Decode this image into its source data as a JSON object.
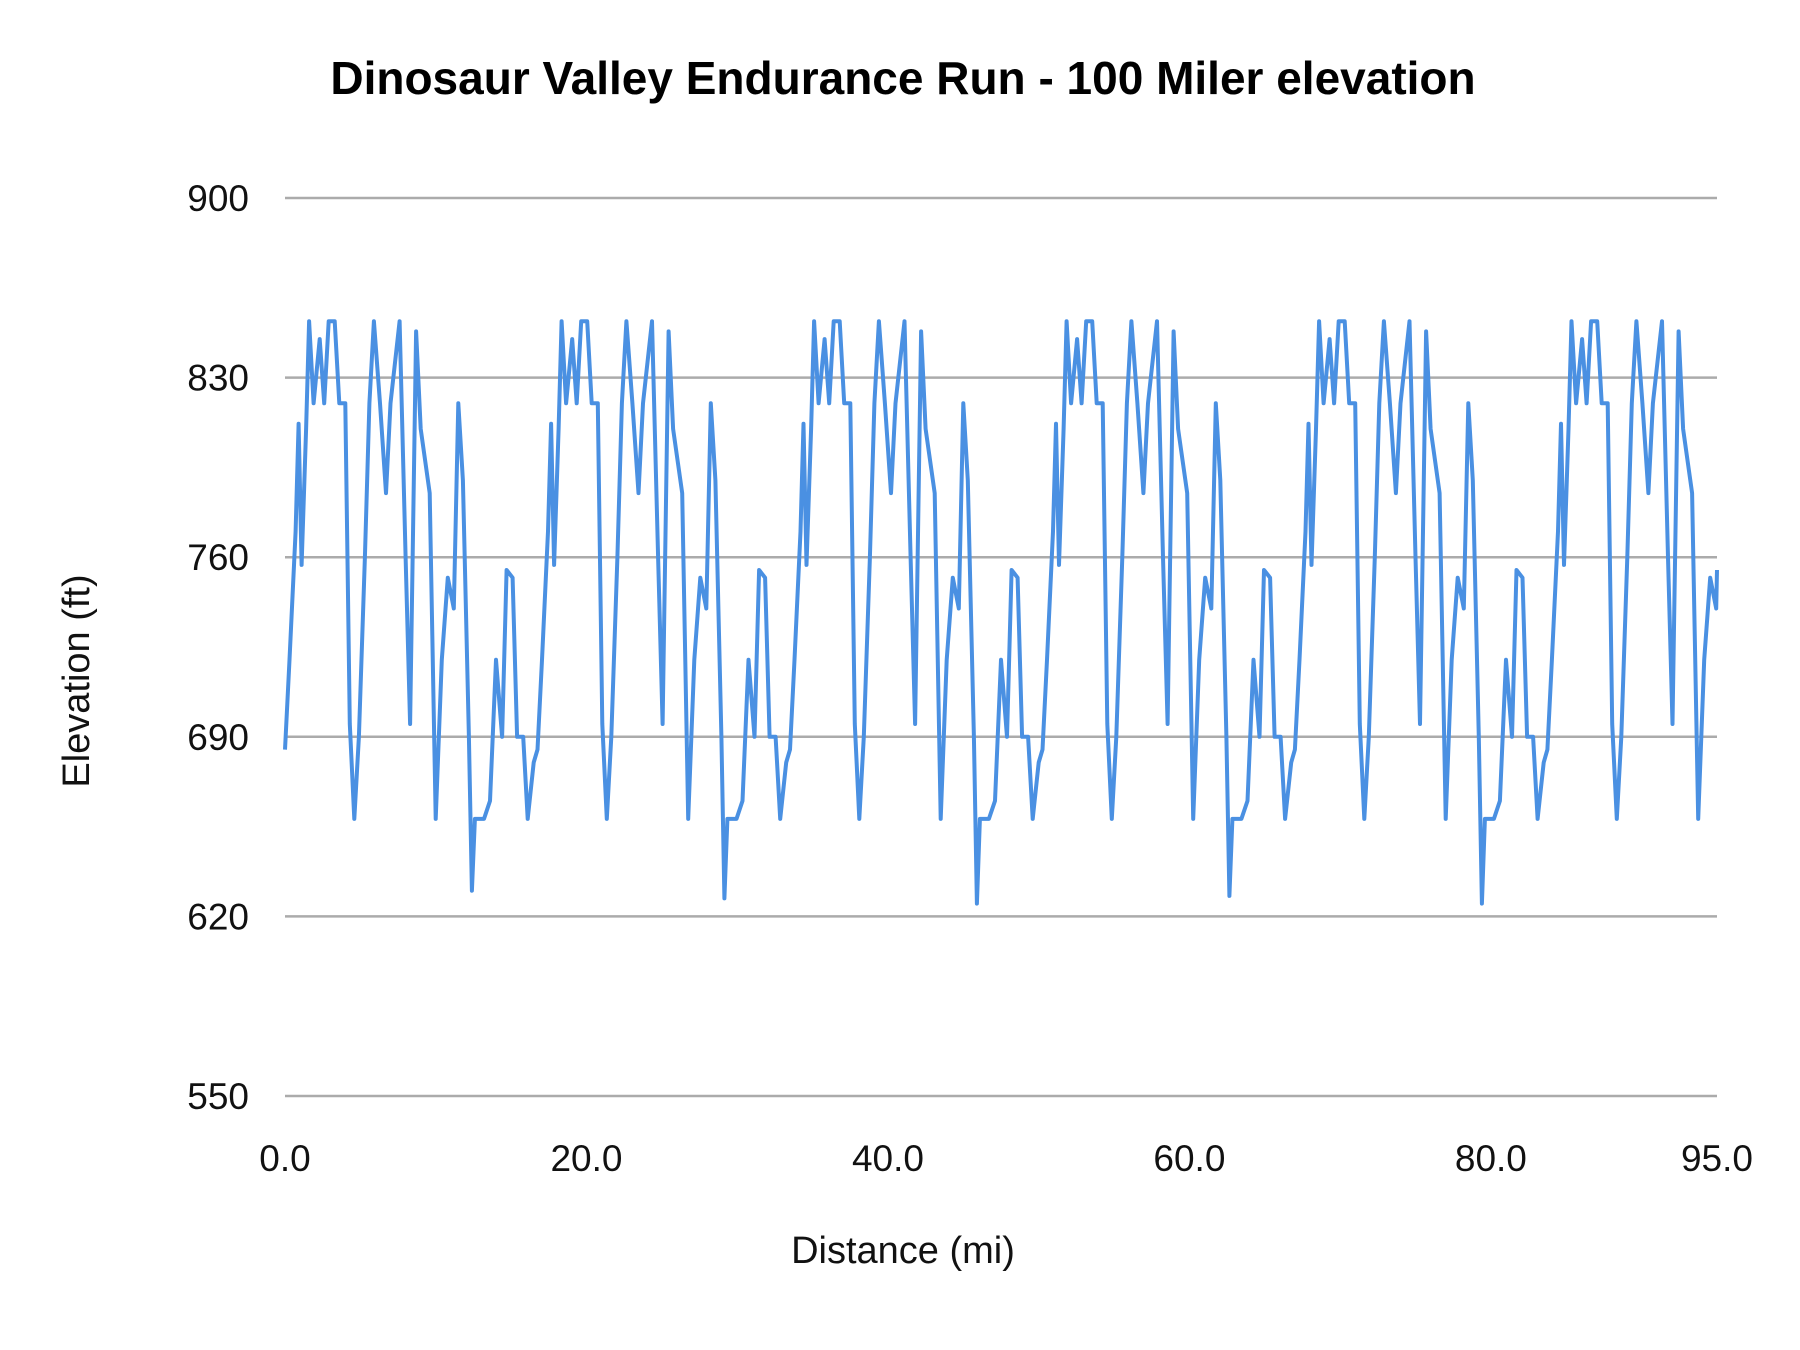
{
  "chart_data": {
    "type": "line",
    "title": "Dinosaur Valley Endurance Run - 100 Miler elevation",
    "xlabel": "Distance (mi)",
    "ylabel": "Elevation (ft)",
    "xlim": [
      0,
      95
    ],
    "ylim": [
      550,
      900
    ],
    "x_ticks": [
      "0.0",
      "20.0",
      "40.0",
      "60.0",
      "80.0",
      "95.0"
    ],
    "x_tick_values": [
      0,
      20,
      40,
      60,
      80,
      95
    ],
    "y_ticks": [
      "900",
      "830",
      "760",
      "690",
      "620",
      "550"
    ],
    "y_tick_values": [
      900,
      830,
      760,
      690,
      620,
      550
    ],
    "grid": true,
    "legend": "none",
    "colors": {
      "line": "#4a90e2",
      "grid": "#ababab"
    },
    "series": [
      {
        "x": [
          0,
          0.3,
          0.7,
          0.9,
          1.1,
          1.4,
          1.6,
          1.9,
          2.3,
          2.6,
          2.9,
          3.3,
          3.6,
          4.0,
          4.3,
          4.6,
          4.9,
          5.3,
          5.6,
          5.9,
          6.3,
          6.7,
          7.0,
          7.6,
          8.0,
          8.3,
          8.7,
          9.0,
          9.6,
          10.0,
          10.4,
          10.8,
          11.2,
          11.5,
          11.8,
          12.2,
          12.4,
          12.6,
          13.2,
          13.6,
          14.0,
          14.4,
          14.7,
          15.1,
          15.4,
          15.8,
          16.1,
          16.5,
          16.75,
          17.05,
          17.45,
          17.65,
          17.85,
          18.15,
          18.35,
          18.65,
          19.05,
          19.35,
          19.65,
          20.05,
          20.35,
          20.75,
          21.05,
          21.35,
          21.65,
          22.05,
          22.35,
          22.65,
          23.05,
          23.45,
          23.75,
          24.35,
          24.75,
          25.05,
          25.45,
          25.75,
          26.35,
          26.75,
          27.15,
          27.55,
          27.95,
          28.25,
          28.55,
          28.95,
          29.15,
          29.35,
          29.95,
          30.35,
          30.75,
          31.15,
          31.45,
          31.85,
          32.15,
          32.55,
          32.85,
          33.25,
          33.5,
          33.8,
          34.2,
          34.4,
          34.6,
          34.9,
          35.1,
          35.4,
          35.8,
          36.1,
          36.4,
          36.8,
          37.1,
          37.5,
          37.8,
          38.1,
          38.4,
          38.8,
          39.1,
          39.4,
          39.8,
          40.2,
          40.5,
          41.1,
          41.5,
          41.8,
          42.2,
          42.5,
          43.1,
          43.5,
          43.9,
          44.3,
          44.7,
          45.0,
          45.3,
          45.7,
          45.9,
          46.1,
          46.7,
          47.1,
          47.5,
          47.9,
          48.2,
          48.6,
          48.9,
          49.3,
          49.6,
          50.0,
          50.25,
          50.55,
          50.95,
          51.15,
          51.35,
          51.65,
          51.85,
          52.15,
          52.55,
          52.85,
          53.15,
          53.55,
          53.85,
          54.25,
          54.55,
          54.85,
          55.15,
          55.55,
          55.85,
          56.15,
          56.55,
          56.95,
          57.25,
          57.85,
          58.25,
          58.55,
          58.95,
          59.25,
          59.85,
          60.25,
          60.65,
          61.05,
          61.45,
          61.75,
          62.05,
          62.45,
          62.65,
          62.85,
          63.45,
          63.85,
          64.25,
          64.65,
          64.95,
          65.35,
          65.65,
          66.05,
          66.35,
          66.75,
          67,
          67.3,
          67.7,
          67.9,
          68.1,
          68.4,
          68.6,
          68.9,
          69.3,
          69.6,
          69.9,
          70.3,
          70.6,
          71.0,
          71.3,
          71.6,
          71.9,
          72.3,
          72.6,
          72.9,
          73.3,
          73.7,
          74.0,
          74.6,
          75.0,
          75.3,
          75.7,
          76.0,
          76.6,
          77.0,
          77.4,
          77.8,
          78.2,
          78.5,
          78.8,
          79.2,
          79.4,
          79.6,
          80.2,
          80.6,
          81.0,
          81.4,
          81.7,
          82.1,
          82.4,
          82.8,
          83.1,
          83.5,
          83.75,
          84.05,
          84.45,
          84.65,
          84.85,
          85.15,
          85.35,
          85.65,
          86.05,
          86.35,
          86.65,
          87.05,
          87.35,
          87.75,
          88.05,
          88.35,
          88.65,
          89.05,
          89.35,
          89.65,
          90.05,
          90.45,
          90.75,
          91.35,
          91.75,
          92.05,
          92.45,
          92.75,
          93.35,
          93.75,
          94.15,
          94.55,
          94.95,
          95
        ],
        "y": [
          685,
          720,
          770,
          812,
          757,
          810,
          852,
          820,
          845,
          820,
          852,
          852,
          820,
          820,
          695,
          658,
          690,
          760,
          820,
          852,
          820,
          785,
          820,
          852,
          760,
          695,
          848,
          810,
          785,
          658,
          720,
          752,
          740,
          820,
          790,
          690,
          630,
          658,
          658,
          665,
          720,
          690,
          755,
          752,
          690,
          690,
          658,
          680,
          685,
          720,
          770,
          812,
          757,
          810,
          852,
          820,
          845,
          820,
          852,
          852,
          820,
          820,
          695,
          658,
          690,
          760,
          820,
          852,
          820,
          785,
          820,
          852,
          760,
          695,
          848,
          810,
          785,
          658,
          720,
          752,
          740,
          820,
          790,
          690,
          627,
          658,
          658,
          665,
          720,
          690,
          755,
          752,
          690,
          690,
          658,
          680,
          685,
          720,
          770,
          812,
          757,
          810,
          852,
          820,
          845,
          820,
          852,
          852,
          820,
          820,
          695,
          658,
          690,
          760,
          820,
          852,
          820,
          785,
          820,
          852,
          760,
          695,
          848,
          810,
          785,
          658,
          720,
          752,
          740,
          820,
          790,
          690,
          625,
          658,
          658,
          665,
          720,
          690,
          755,
          752,
          690,
          690,
          658,
          680,
          685,
          720,
          770,
          812,
          757,
          810,
          852,
          820,
          845,
          820,
          852,
          852,
          820,
          820,
          695,
          658,
          690,
          760,
          820,
          852,
          820,
          785,
          820,
          852,
          760,
          695,
          848,
          810,
          785,
          658,
          720,
          752,
          740,
          820,
          790,
          690,
          628,
          658,
          658,
          665,
          720,
          690,
          755,
          752,
          690,
          690,
          658,
          680,
          685,
          720,
          770,
          812,
          757,
          810,
          852,
          820,
          845,
          820,
          852,
          852,
          820,
          820,
          695,
          658,
          690,
          760,
          820,
          852,
          820,
          785,
          820,
          852,
          760,
          695,
          848,
          810,
          785,
          658,
          720,
          752,
          740,
          820,
          790,
          690,
          625,
          658,
          658,
          665,
          720,
          690,
          755,
          752,
          690,
          690,
          658,
          680,
          685,
          720,
          770,
          812,
          757,
          810,
          852,
          820,
          845,
          820,
          852,
          852,
          820,
          820,
          695,
          658,
          690,
          760,
          820,
          852,
          820,
          785,
          820,
          852,
          760,
          695,
          848,
          810,
          785,
          658,
          720,
          752,
          740,
          755
        ]
      }
    ]
  }
}
